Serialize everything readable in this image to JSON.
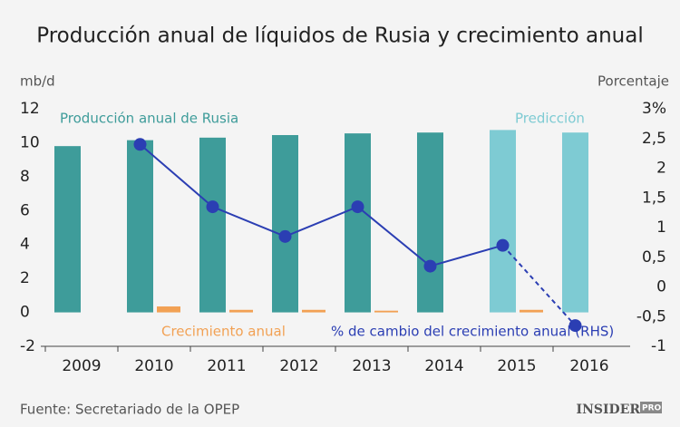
{
  "chart_data": {
    "type": "bar-line",
    "title": "Producción anual de líquidos de Rusia y crecimiento anual",
    "ylabel": "mb/d",
    "y2label": "Porcentaje",
    "source": "Fuente: Secretariado de la OPEP",
    "logo": "INSIDER",
    "logo_suffix": "PRO",
    "categories": [
      "2009",
      "2010",
      "2011",
      "2012",
      "2013",
      "2014",
      "2015",
      "2016"
    ],
    "series": [
      {
        "name": "Producción anual de Rusia",
        "kind": "bar",
        "color": "#3e9c9a",
        "colors": [
          "#3e9c9a",
          "#3e9c9a",
          "#3e9c9a",
          "#3e9c9a",
          "#3e9c9a",
          "#3e9c9a",
          "#7ecbd3",
          "#7ecbd3"
        ],
        "values": [
          9.8,
          10.15,
          10.3,
          10.45,
          10.55,
          10.6,
          10.75,
          10.6
        ]
      },
      {
        "name": "Crecimiento anual",
        "kind": "bar",
        "color": "#f2a154",
        "values": [
          null,
          0.35,
          0.15,
          0.15,
          0.1,
          null,
          0.15,
          null
        ]
      },
      {
        "name": "% de cambio del crecimiento anual (RHS)",
        "kind": "line",
        "axis": "y2",
        "color": "#2b3eb3",
        "dashed": [
          false,
          false,
          false,
          false,
          false,
          false,
          false,
          true
        ],
        "values": [
          null,
          2.4,
          1.35,
          0.85,
          1.35,
          0.35,
          0.7,
          -0.65
        ]
      }
    ],
    "forecast_label": "Predicción",
    "forecast_color": "#7ecbd3",
    "ylim": [
      -2,
      12
    ],
    "yticks": [
      -2,
      0,
      2,
      4,
      6,
      8,
      10,
      12
    ],
    "y2lim": [
      -1,
      3
    ],
    "y2ticks": [
      {
        "value": -1,
        "label": "-1"
      },
      {
        "value": -0.5,
        "label": "-0,5"
      },
      0,
      {
        "value": 0.5,
        "label": "0,5"
      },
      1,
      {
        "value": 1.5,
        "label": "1,5"
      },
      2,
      {
        "value": 2.5,
        "label": "2,5"
      },
      {
        "value": 3,
        "label": "3%"
      }
    ]
  }
}
